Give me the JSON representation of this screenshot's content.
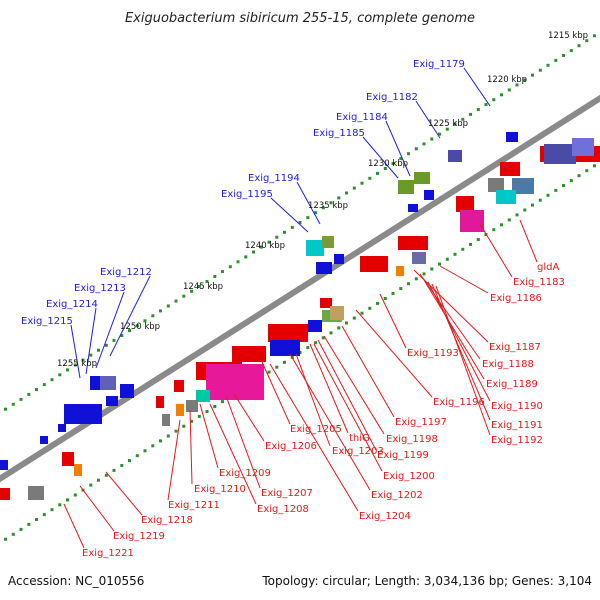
{
  "title": "Exiguobacterium sibiricum 255-15, complete genome",
  "footer": {
    "accession": "Accession: NC_010556",
    "topology": "Topology: circular; Length: 3,034,136 bp; Genes: 3,104"
  },
  "colors": {
    "forward_label": "#1f1fd6",
    "reverse_label": "#dd1c1c",
    "backbone": "#8a8a8a",
    "tick": "#2f8f2f"
  },
  "scale_labels": [
    "1215 kbp",
    "1220 kbp",
    "1225 kbp",
    "1230 kbp",
    "1235 kbp",
    "1240 kbp",
    "1245 kbp",
    "1250 kbp",
    "1255 kbp"
  ],
  "forward_genes": [
    "Exig_1179",
    "Exig_1182",
    "Exig_1184",
    "Exig_1185",
    "Exig_1194",
    "Exig_1195",
    "Exig_1212",
    "Exig_1213",
    "Exig_1214",
    "Exig_1215"
  ],
  "reverse_genes": [
    "gldA",
    "Exig_1183",
    "Exig_1186",
    "Exig_1187",
    "Exig_1188",
    "Exig_1193",
    "Exig_1189",
    "Exig_1190",
    "Exig_1196",
    "Exig_1191",
    "Exig_1192",
    "Exig_1197",
    "Exig_1205",
    "thiG",
    "Exig_1198",
    "Exig_1206",
    "Exig_1203",
    "Exig_1199",
    "Exig_1200",
    "Exig_1209",
    "Exig_1210",
    "Exig_1207",
    "Exig_1202",
    "Exig_1211",
    "Exig_1208",
    "Exig_1204",
    "Exig_1218",
    "Exig_1219",
    "Exig_1221"
  ]
}
